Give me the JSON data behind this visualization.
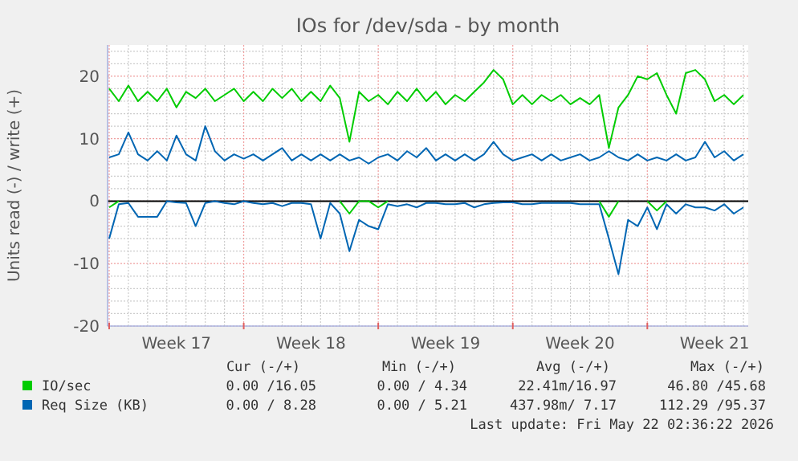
{
  "chart_data": {
    "type": "line",
    "title": "IOs for /dev/sda - by month",
    "ylabel": "Units read (-) / write (+)",
    "categories": [
      null,
      null,
      null,
      null,
      null,
      null,
      null,
      "Week 17",
      null,
      null,
      null,
      null,
      null,
      null,
      null,
      null,
      null,
      null,
      null,
      null,
      null,
      "Week 18",
      null,
      null,
      null,
      null,
      null,
      null,
      null,
      null,
      null,
      null,
      null,
      null,
      null,
      "Week 19",
      null,
      null,
      null,
      null,
      null,
      null,
      null,
      null,
      null,
      null,
      null,
      null,
      null,
      "Week 20",
      null,
      null,
      null,
      null,
      null,
      null,
      null,
      null,
      null,
      null,
      null,
      null,
      null,
      "Week 21",
      null,
      null,
      null
    ],
    "ylim": [
      -20,
      25
    ],
    "yticks": [
      -20,
      {
        "value": -18,
        "label": null
      },
      {
        "value": -16,
        "label": null
      },
      {
        "value": -14,
        "label": null
      },
      {
        "value": -12,
        "label": null
      },
      -10,
      {
        "value": -8,
        "label": null
      },
      {
        "value": -6,
        "label": null
      },
      {
        "value": -4,
        "label": null
      },
      {
        "value": -2,
        "label": null
      },
      0,
      {
        "value": 2,
        "label": null
      },
      {
        "value": 4,
        "label": null
      },
      {
        "value": 6,
        "label": null
      },
      {
        "value": 8,
        "label": null
      },
      10,
      {
        "value": 12,
        "label": null
      },
      {
        "value": 14,
        "label": null
      },
      {
        "value": 16,
        "label": null
      },
      {
        "value": 18,
        "label": null
      },
      20,
      {
        "value": 22,
        "label": null
      },
      {
        "value": 24,
        "label": null
      }
    ],
    "grid": true,
    "legend": "bottom left",
    "series": [
      {
        "name": "IO/sec",
        "color": "#00cc00",
        "values": [
          18,
          16,
          18.5,
          16,
          17.5,
          16,
          18,
          15,
          17.5,
          16.5,
          18,
          16,
          17,
          18,
          16,
          17.5,
          16,
          18,
          16.5,
          18,
          16,
          17.5,
          16,
          18.5,
          16.5,
          9.5,
          17.5,
          16,
          17,
          15.5,
          17.5,
          16,
          18,
          16,
          17.5,
          15.5,
          17,
          16,
          17.5,
          19,
          21,
          19.5,
          15.5,
          17,
          15.5,
          17,
          16,
          17,
          15.5,
          16.5,
          15.5,
          17,
          8.5,
          15,
          17,
          20,
          19.5,
          20.5,
          17,
          14,
          20.5,
          21,
          19.5,
          16,
          17,
          15.5,
          17
        ]
      },
      {
        "color": "#00cc00",
        "values": [
          -1,
          0,
          null,
          null,
          null,
          null,
          null,
          null,
          null,
          null,
          null,
          null,
          null,
          null,
          null,
          null,
          null,
          null,
          null,
          null,
          null,
          null,
          null,
          null,
          0,
          -2,
          0,
          0,
          -1,
          0,
          null,
          null,
          null,
          null,
          null,
          null,
          null,
          null,
          null,
          null,
          null,
          null,
          null,
          null,
          null,
          null,
          null,
          null,
          null,
          null,
          null,
          0,
          -2.5,
          0,
          null,
          null,
          0,
          -1.5,
          0,
          null,
          null,
          null,
          null,
          null,
          null,
          null,
          null
        ]
      },
      {
        "name": "Req Size (KB)",
        "color": "#0066b3",
        "values": [
          7,
          7.5,
          11,
          7.5,
          6.5,
          8,
          6.5,
          10.5,
          7.5,
          6.5,
          12,
          8,
          6.5,
          7.5,
          6.8,
          7.5,
          6.5,
          7.5,
          8.5,
          6.5,
          7.5,
          6.5,
          7.5,
          6.5,
          7.5,
          6.5,
          7,
          6,
          7,
          7.5,
          6.5,
          8,
          7,
          8.5,
          6.5,
          7.5,
          6.5,
          7.5,
          6.5,
          7.5,
          9.5,
          7.5,
          6.5,
          7,
          7.5,
          6.5,
          7.5,
          6.5,
          7,
          7.5,
          6.5,
          7,
          8,
          7,
          6.5,
          7.5,
          6.5,
          7,
          6.5,
          7.5,
          6.5,
          7,
          9.5,
          7,
          8,
          6.5,
          7.5
        ]
      },
      {
        "color": "#0066b3",
        "values": [
          -6,
          -0.5,
          -0.3,
          -2.5,
          -2.5,
          -2.5,
          0,
          -0.2,
          -0.3,
          -4,
          -0.3,
          0,
          -0.3,
          -0.5,
          0,
          -0.3,
          -0.5,
          -0.3,
          -0.8,
          -0.3,
          -0.3,
          -0.5,
          -6,
          -0.3,
          -2,
          -8,
          -3,
          -4,
          -4.5,
          -0.5,
          -0.8,
          -0.5,
          -1,
          -0.3,
          -0.3,
          -0.5,
          -0.5,
          -0.3,
          -1,
          -0.5,
          -0.3,
          -0.2,
          -0.2,
          -0.5,
          -0.5,
          -0.3,
          -0.3,
          -0.3,
          -0.3,
          -0.5,
          -0.5,
          -0.5,
          -6,
          -11.7,
          -3,
          -4,
          -1,
          -4.5,
          -0.5,
          -2,
          -0.5,
          -1,
          -1,
          -1.5,
          -0.5,
          -2,
          -1
        ]
      }
    ],
    "annotations": [
      "Cur (-/+)",
      "Min (-/+)",
      "Avg (-/+)",
      "Max (-/+)",
      "0.00 /16.05",
      "0.00 / 4.34",
      "22.41m/16.97",
      "46.80 /45.68",
      "0.00 / 8.28",
      "0.00 / 5.21",
      "437.98m/ 7.17",
      "112.29 /95.37",
      "Last update: Fri May 22 02:36:22 2026"
    ]
  }
}
